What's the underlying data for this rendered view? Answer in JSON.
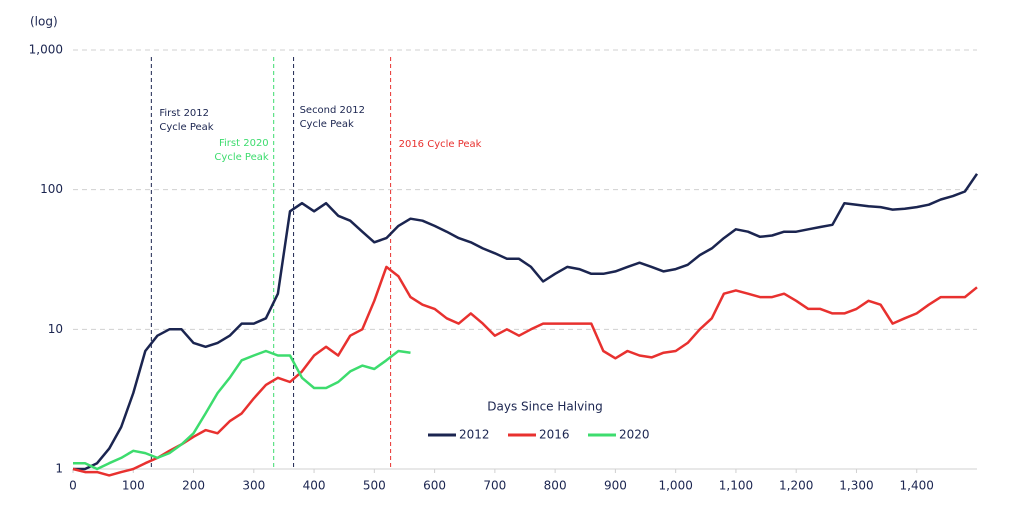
{
  "chart_data": {
    "type": "line",
    "ylabel": "(log)",
    "xlabel": "Days Since Halving",
    "log_y": true,
    "grid": true,
    "legend": "center",
    "xlim": [
      0,
      1500
    ],
    "ylim": [
      1,
      1000
    ],
    "xticks": [
      0,
      100,
      200,
      300,
      400,
      500,
      600,
      700,
      800,
      900,
      {
        "value": 1000,
        "label": "1,000"
      },
      {
        "value": 1100,
        "label": "1,100"
      },
      {
        "value": 1200,
        "label": "1,200"
      },
      {
        "value": 1300,
        "label": "1,300"
      },
      {
        "value": 1400,
        "label": "1,400"
      }
    ],
    "yticks": [
      1,
      10,
      100,
      {
        "value": 1000,
        "label": "1,000"
      }
    ],
    "x": [
      0,
      20,
      40,
      60,
      80,
      100,
      120,
      140,
      160,
      180,
      200,
      220,
      240,
      260,
      280,
      300,
      320,
      340,
      360,
      380,
      400,
      420,
      440,
      460,
      480,
      500,
      520,
      540,
      560,
      580,
      600,
      620,
      640,
      660,
      680,
      700,
      720,
      740,
      760,
      780,
      800,
      820,
      840,
      860,
      880,
      900,
      920,
      940,
      960,
      980,
      1000,
      1020,
      1040,
      1060,
      1080,
      1100,
      1120,
      1140,
      1160,
      1180,
      1200,
      1220,
      1240,
      1260,
      1280,
      1300,
      1320,
      1340,
      1360,
      1380,
      1400,
      1420,
      1440,
      1460,
      1480,
      1500
    ],
    "series": [
      {
        "name": "2012",
        "color": "#1b2550",
        "values": [
          1.0,
          1.0,
          1.1,
          1.4,
          2,
          3.5,
          7,
          9,
          10,
          10,
          8,
          7.5,
          8,
          9,
          11,
          11,
          12,
          18,
          70,
          80,
          70,
          80,
          65,
          60,
          50,
          42,
          45,
          55,
          62,
          60,
          55,
          50,
          45,
          42,
          38,
          35,
          32,
          32,
          28,
          22,
          25,
          28,
          27,
          25,
          25,
          26,
          28,
          30,
          28,
          26,
          27,
          29,
          34,
          38,
          45,
          52,
          50,
          46,
          47,
          50,
          50,
          52,
          54,
          56,
          80,
          78,
          76,
          75,
          72,
          73,
          75,
          78,
          85,
          90,
          97,
          130
        ]
      },
      {
        "name": "2016",
        "color": "#e8312f",
        "values": [
          1.0,
          0.95,
          0.95,
          0.9,
          0.95,
          1.0,
          1.1,
          1.2,
          1.35,
          1.5,
          1.7,
          1.9,
          1.8,
          2.2,
          2.5,
          3.2,
          4,
          4.5,
          4.2,
          5,
          6.5,
          7.5,
          6.5,
          9,
          10,
          16,
          28,
          24,
          17,
          15,
          14,
          12,
          11,
          13,
          11,
          9,
          10,
          9,
          10,
          11,
          11,
          11,
          11,
          11,
          7,
          6.2,
          7,
          6.5,
          6.3,
          6.8,
          7,
          8,
          10,
          12,
          18,
          19,
          18,
          17,
          17,
          18,
          16,
          14,
          14,
          13,
          13,
          14,
          16,
          15,
          11,
          12,
          13,
          15,
          17,
          17,
          17,
          20
        ]
      },
      {
        "name": "2020",
        "color": "#3ddc6e",
        "values": [
          1.1,
          1.1,
          1.0,
          1.1,
          1.2,
          1.35,
          1.3,
          1.2,
          1.3,
          1.5,
          1.8,
          2.5,
          3.5,
          4.5,
          6,
          6.5,
          7,
          6.5,
          6.5,
          4.5,
          3.8,
          3.8,
          4.2,
          5,
          5.5,
          5.2,
          6,
          7,
          6.8,
          null,
          null,
          null,
          null,
          null,
          null,
          null,
          null,
          null,
          null,
          null,
          null,
          null,
          null,
          null,
          null,
          null,
          null,
          null,
          null,
          null,
          null,
          null,
          null,
          null,
          null,
          null,
          null,
          null,
          null,
          null,
          null,
          null,
          null,
          null,
          null,
          null,
          null,
          null,
          null,
          null,
          null,
          null,
          null,
          null,
          null,
          null
        ]
      }
    ],
    "annotations": [
      {
        "x": 130,
        "lines": [
          "First 2012",
          "Cycle Peak"
        ],
        "color": "#1b2550"
      },
      {
        "x": 333,
        "lines": [
          "First 2020",
          "Cycle Peak"
        ],
        "color": "#3ddc6e"
      },
      {
        "x": 366,
        "lines": [
          "Second 2012",
          "Cycle Peak"
        ],
        "color": "#1b2550"
      },
      {
        "x": 527,
        "lines": [
          "2016 Cycle Peak"
        ],
        "color": "#e8312f"
      }
    ]
  }
}
